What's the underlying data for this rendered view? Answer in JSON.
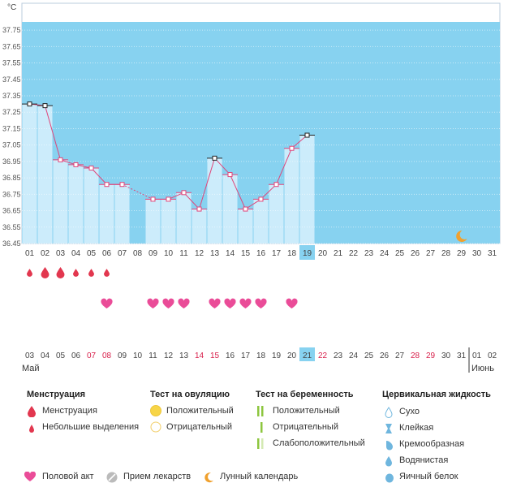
{
  "chart_data": {
    "type": "line",
    "unit_label": "°C",
    "y_ticks": [
      "37.75",
      "37.65",
      "37.55",
      "37.45",
      "37.35",
      "37.25",
      "37.15",
      "37.05",
      "36.95",
      "36.85",
      "36.75",
      "36.65",
      "36.55",
      "36.45"
    ],
    "ylim": [
      36.45,
      37.8
    ],
    "x_days_top": [
      "01",
      "02",
      "03",
      "04",
      "05",
      "06",
      "07",
      "08",
      "09",
      "10",
      "11",
      "12",
      "13",
      "14",
      "15",
      "16",
      "17",
      "18",
      "19",
      "20",
      "21",
      "22",
      "23",
      "24",
      "25",
      "26",
      "27",
      "28",
      "29",
      "30",
      "31"
    ],
    "current_day_index": 18,
    "temps": [
      37.3,
      37.29,
      36.96,
      36.93,
      36.91,
      36.81,
      36.81,
      null,
      36.72,
      36.72,
      36.76,
      36.66,
      36.97,
      36.87,
      36.66,
      36.72,
      36.81,
      37.03,
      37.11
    ],
    "high_marked_days": [
      0,
      1,
      12,
      18
    ],
    "moon_day_index": 28,
    "menstruation": [
      "big",
      "big",
      "big",
      "big",
      "small",
      "small",
      "small"
    ],
    "menstruation_kinds": [
      "small",
      "big",
      "big",
      "small",
      "small",
      "small"
    ],
    "intercourse_days": [
      5,
      8,
      9,
      10,
      12,
      13,
      14,
      15,
      17
    ],
    "bottom_days": [
      "03",
      "04",
      "05",
      "06",
      "07",
      "08",
      "09",
      "10",
      "11",
      "12",
      "13",
      "14",
      "15",
      "16",
      "17",
      "18",
      "19",
      "20",
      "21",
      "22",
      "23",
      "24",
      "25",
      "26",
      "27",
      "28",
      "29",
      "30",
      "31",
      "01",
      "02"
    ],
    "bottom_red_indices": [
      4,
      5,
      11,
      12,
      19,
      25,
      26
    ],
    "bottom_current_index": 18,
    "month_start": "Май",
    "month_end": "Июнь"
  },
  "legend": {
    "menstruation": {
      "title": "Менструация",
      "items": [
        "Менструация",
        "Небольшие выделения"
      ]
    },
    "ovulation": {
      "title": "Тест на овуляцию",
      "items": [
        "Положительный",
        "Отрицательный"
      ]
    },
    "pregnancy": {
      "title": "Тест на беременность",
      "items": [
        "Положительный",
        "Отрицательный",
        "Слабоположительный"
      ]
    },
    "fluid": {
      "title": "Цервикальная жидкость",
      "items": [
        "Сухо",
        "Клейкая",
        "Кремообразная",
        "Водянистая",
        "Яичный белок"
      ]
    },
    "bottom": [
      "Половой акт",
      "Прием лекарств",
      "Лунный календарь"
    ]
  },
  "colors": {
    "sky": "#87d2f0",
    "bar": "#ccecfb",
    "line": "#e0457a",
    "heart": "#ea4c98",
    "drop": "#e2374f",
    "highlight": "#87d2f0"
  }
}
